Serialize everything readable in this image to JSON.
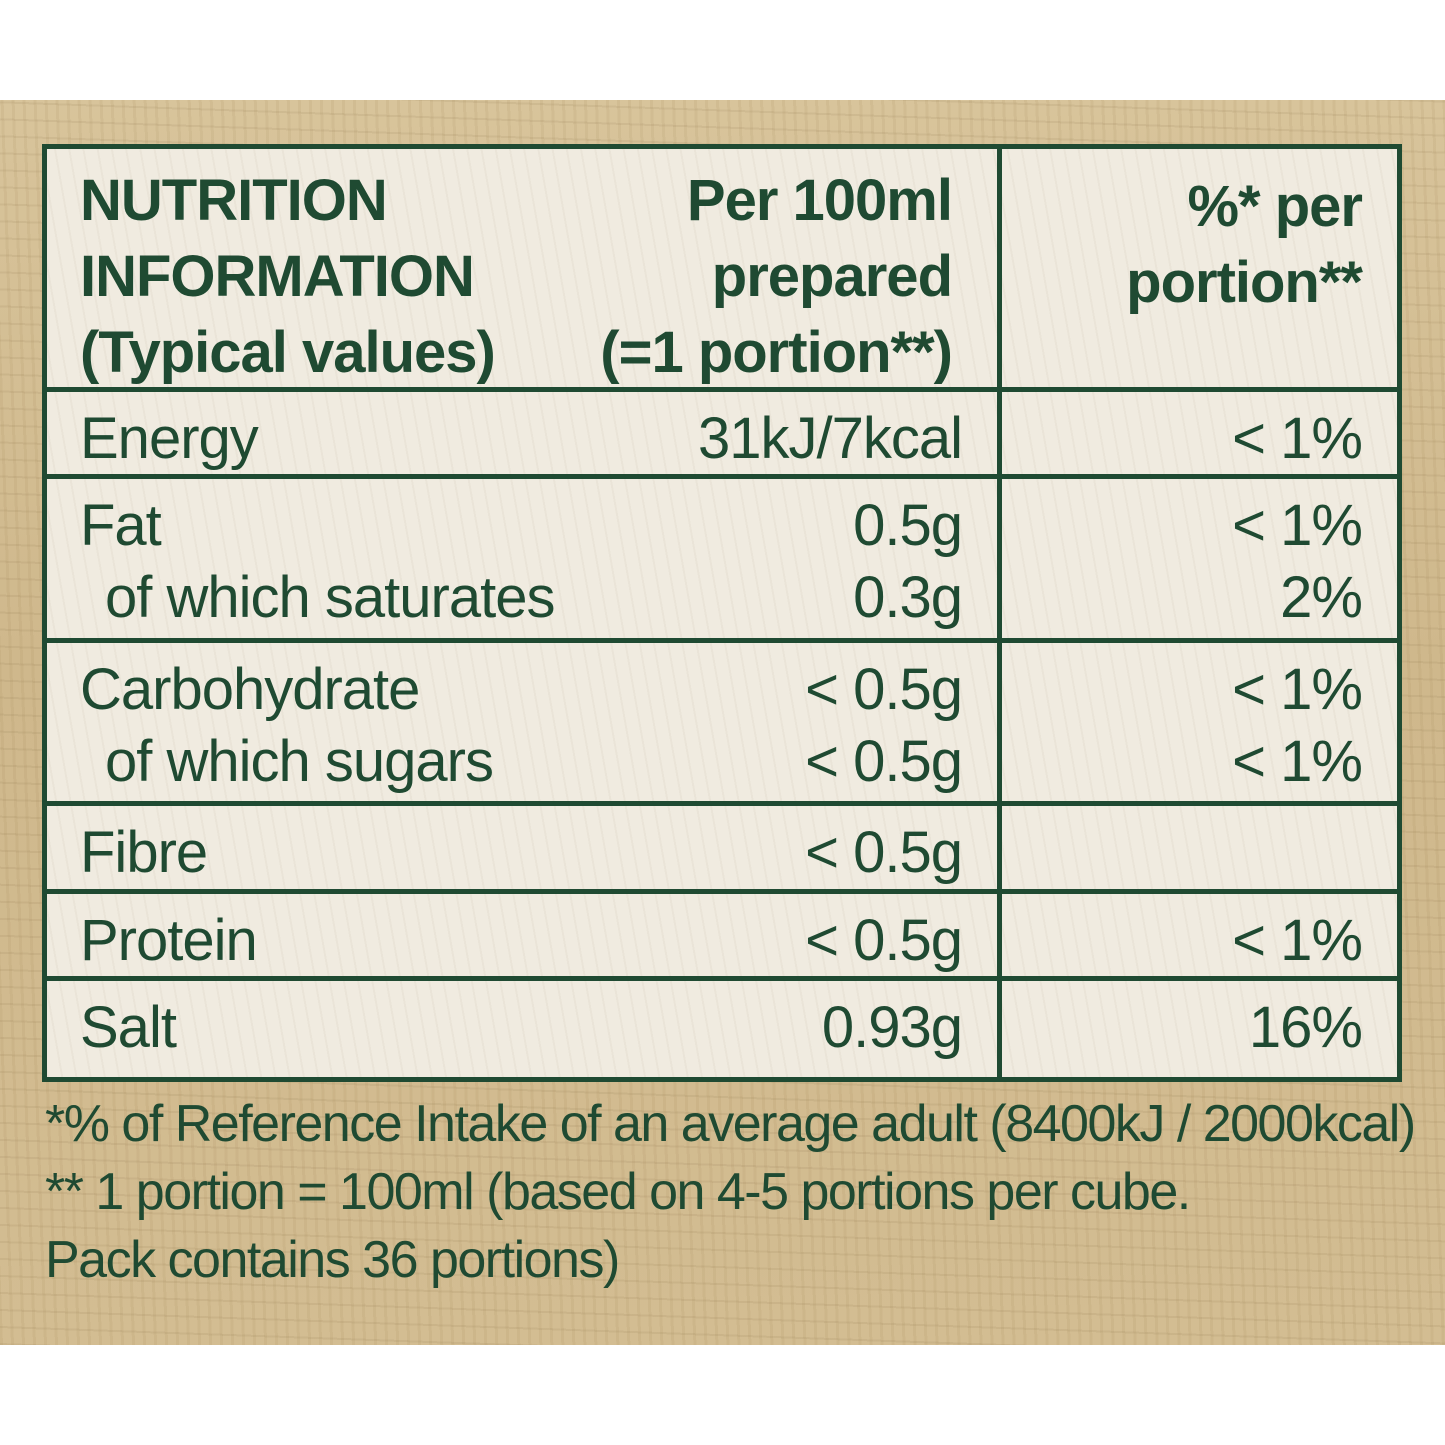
{
  "header": {
    "title_line1": "NUTRITION",
    "title_line2": "INFORMATION",
    "title_line3": "(Typical values)",
    "per100_line1": "Per 100ml",
    "per100_line2": "prepared",
    "per100_line3": "(=1 portion**)",
    "percent_line1": "%* per",
    "percent_line2": "portion**"
  },
  "rows": [
    {
      "name": "Energy",
      "value": "31kJ/7kcal",
      "percent": "< 1%"
    },
    {
      "name": "Fat",
      "value": "0.5g",
      "percent": "< 1%"
    },
    {
      "name": "of which saturates",
      "value": "0.3g",
      "percent": "2%"
    },
    {
      "name": "Carbohydrate",
      "value": "< 0.5g",
      "percent": "< 1%"
    },
    {
      "name": "of which sugars",
      "value": "< 0.5g",
      "percent": "< 1%"
    },
    {
      "name": "Fibre",
      "value": "< 0.5g",
      "percent": ""
    },
    {
      "name": "Protein",
      "value": "< 0.5g",
      "percent": "< 1%"
    },
    {
      "name": "Salt",
      "value": "0.93g",
      "percent": "16%"
    }
  ],
  "footnotes": {
    "line1": "*% of Reference Intake of an average adult (8400kJ / 2000kcal)",
    "line2": "** 1 portion = 100ml (based on 4-5 portions per cube.",
    "line3": "Pack contains 36 portions)"
  },
  "colors": {
    "text_green": "#1f4a32",
    "table_background": "#f0ebe0",
    "panel_background": "#d4bf95"
  }
}
